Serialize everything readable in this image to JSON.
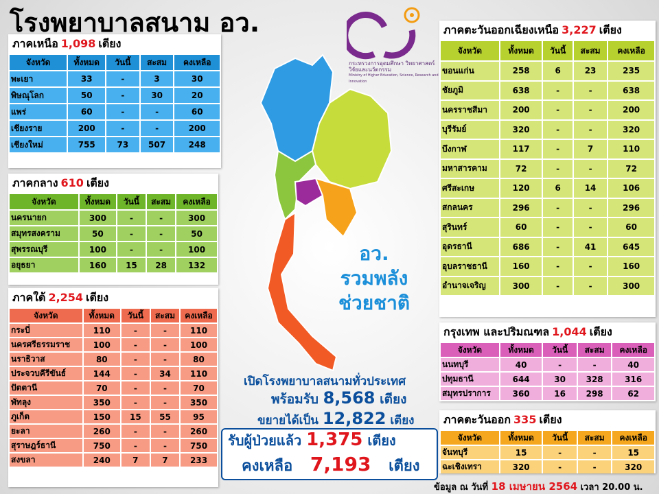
{
  "header": {
    "title": "โรงพยาบาลสนาม อว.",
    "ministry_th": "กระทรวงการอุดมศึกษา วิทยาศาสตร์ วิจัยและนวัตกรรม",
    "ministry_en": "Ministry of Higher Education, Science, Research and Innovation"
  },
  "slogan": [
    "อว.",
    "รวมพลัง",
    "ช่วยชาติ"
  ],
  "regions": {
    "north": {
      "title": "ภาคเหนือ",
      "count": "1,098",
      "unit": "เตียง",
      "headers": [
        "จังหวัด",
        "ทั้งหมด",
        "วันนี้",
        "สะสม",
        "คงเหลือ"
      ],
      "rows": [
        [
          "พะเยา",
          "33",
          "-",
          "3",
          "30"
        ],
        [
          "พิษณุโลก",
          "50",
          "-",
          "30",
          "20"
        ],
        [
          "แพร่",
          "60",
          "-",
          "-",
          "60"
        ],
        [
          "เชียงราย",
          "200",
          "-",
          "-",
          "200"
        ],
        [
          "เชียงใหม่",
          "755",
          "73",
          "507",
          "248"
        ]
      ]
    },
    "central": {
      "title": "ภาคกลาง",
      "count": "610",
      "unit": "เตียง",
      "headers": [
        "จังหวัด",
        "ทั้งหมด",
        "วันนี้",
        "สะสม",
        "คงเหลือ"
      ],
      "rows": [
        [
          "นครนายก",
          "300",
          "-",
          "-",
          "300"
        ],
        [
          "สมุทรสงคราม",
          "50",
          "-",
          "-",
          "50"
        ],
        [
          "สุพรรณบุรี",
          "100",
          "-",
          "-",
          "100"
        ],
        [
          "อยุธยา",
          "160",
          "15",
          "28",
          "132"
        ]
      ]
    },
    "south": {
      "title": "ภาคใต้",
      "count": "2,254",
      "unit": "เตียง",
      "headers": [
        "จังหวัด",
        "ทั้งหมด",
        "วันนี้",
        "สะสม",
        "คงเหลือ"
      ],
      "rows": [
        [
          "กระบี่",
          "110",
          "-",
          "-",
          "110"
        ],
        [
          "นครศรีธรรมราช",
          "100",
          "-",
          "-",
          "100"
        ],
        [
          "นราธิวาส",
          "80",
          "-",
          "-",
          "80"
        ],
        [
          "ประจวบคีรีขันธ์",
          "144",
          "-",
          "34",
          "110"
        ],
        [
          "ปัตตานี",
          "70",
          "-",
          "-",
          "70"
        ],
        [
          "พัทลุง",
          "350",
          "-",
          "-",
          "350"
        ],
        [
          "ภูเก็ต",
          "150",
          "15",
          "55",
          "95"
        ],
        [
          "ยะลา",
          "260",
          "-",
          "-",
          "260"
        ],
        [
          "สุราษฎร์ธานี",
          "750",
          "-",
          "-",
          "750"
        ],
        [
          "สงขลา",
          "240",
          "7",
          "7",
          "233"
        ]
      ]
    },
    "northeast": {
      "title": "ภาคตะวันออกเฉียงเหนือ",
      "count": "3,227",
      "unit": "เตียง",
      "headers": [
        "จังหวัด",
        "ทั้งหมด",
        "วันนี้",
        "สะสม",
        "คงเหลือ"
      ],
      "rows": [
        [
          "ขอนแก่น",
          "258",
          "6",
          "23",
          "235"
        ],
        [
          "ชัยภูมิ",
          "638",
          "-",
          "-",
          "638"
        ],
        [
          "นครราชสีมา",
          "200",
          "-",
          "-",
          "200"
        ],
        [
          "บุรีรัมย์",
          "320",
          "-",
          "-",
          "320"
        ],
        [
          "บึงกาฬ",
          "117",
          "-",
          "7",
          "110"
        ],
        [
          "มหาสารคาม",
          "72",
          "-",
          "-",
          "72"
        ],
        [
          "ศรีสะเกษ",
          "120",
          "6",
          "14",
          "106"
        ],
        [
          "สกลนคร",
          "296",
          "-",
          "-",
          "296"
        ],
        [
          "สุรินทร์",
          "60",
          "-",
          "-",
          "60"
        ],
        [
          "อุดรธานี",
          "686",
          "-",
          "41",
          "645"
        ],
        [
          "อุบลราชธานี",
          "160",
          "-",
          "-",
          "160"
        ],
        [
          "อำนาจเจริญ",
          "300",
          "-",
          "-",
          "300"
        ]
      ]
    },
    "bangkok": {
      "title": "กรุงเทพ และปริมณฑล",
      "count": "1,044",
      "unit": "เตียง",
      "headers": [
        "จังหวัด",
        "ทั้งหมด",
        "วันนี้",
        "สะสม",
        "คงเหลือ"
      ],
      "rows": [
        [
          "นนทบุรี",
          "40",
          "-",
          "-",
          "40"
        ],
        [
          "ปทุมธานี",
          "644",
          "30",
          "328",
          "316"
        ],
        [
          "สมุทรปราการ",
          "360",
          "16",
          "298",
          "62"
        ]
      ]
    },
    "east": {
      "title": "ภาคตะวันออก",
      "count": "335",
      "unit": "เตียง",
      "headers": [
        "จังหวัด",
        "ทั้งหมด",
        "วันนี้",
        "สะสม",
        "คงเหลือ"
      ],
      "rows": [
        [
          "จันทบุรี",
          "15",
          "-",
          "-",
          "15"
        ],
        [
          "ฉะเชิงเทรา",
          "320",
          "-",
          "-",
          "320"
        ]
      ]
    }
  },
  "summary": {
    "intro": "เปิดโรงพยาบาลสนามทั่วประเทศ",
    "ready": {
      "label": "พร้อมรับ",
      "value": "8,568",
      "unit": "เตียง"
    },
    "expand": {
      "label": "ขยายได้เป็น",
      "value": "12,822",
      "unit": "เตียง"
    },
    "admitted": {
      "label": "รับผู้ป่วยแล้ว",
      "value": "1,375",
      "unit": "เตียง"
    },
    "remaining": {
      "label": "คงเหลือ",
      "value": "7,193",
      "unit": "เตียง"
    }
  },
  "footer": {
    "prefix": "ข้อมูล ณ วันที่",
    "date": "18 เมษายน 2564",
    "time": "เวลา 20.00 น."
  }
}
